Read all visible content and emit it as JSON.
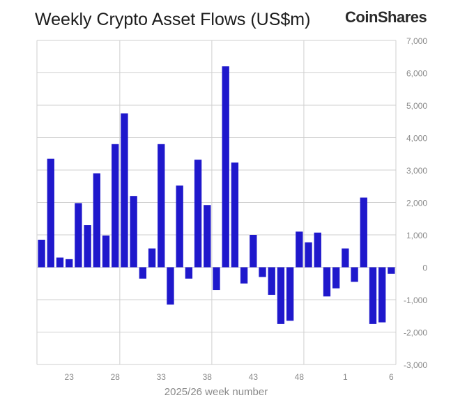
{
  "brand": {
    "logo_text": "CoinShares"
  },
  "chart_data": {
    "type": "bar",
    "title": "Weekly Crypto Asset Flows (US$m)",
    "xlabel": "2025/26 week number",
    "ylabel": "",
    "ylim": [
      -3000,
      7000
    ],
    "yticks": [
      7000,
      6000,
      5000,
      4000,
      3000,
      2000,
      1000,
      0,
      -1000,
      -2000,
      -3000
    ],
    "ytick_labels": [
      "7,000",
      "6,000",
      "5,000",
      "4,000",
      "3,000",
      "2,000",
      "1,000",
      "0",
      "-1,000",
      "-2,000",
      "-3,000"
    ],
    "xtick_labels": [
      "23",
      "28",
      "33",
      "38",
      "43",
      "48",
      "1",
      "6"
    ],
    "xtick_category_index": [
      3,
      8,
      13,
      18,
      23,
      28,
      33,
      38
    ],
    "vertical_gridline_category_positions": [
      9,
      19,
      29
    ],
    "grid": true,
    "bar_color": "#1f18cc",
    "categories": [
      "20",
      "21",
      "22",
      "23",
      "24",
      "25",
      "26",
      "27",
      "28",
      "29",
      "30",
      "31",
      "32",
      "33",
      "34",
      "35",
      "36",
      "37",
      "38",
      "39",
      "40",
      "41",
      "42",
      "43",
      "44",
      "45",
      "46",
      "47",
      "48",
      "49",
      "50",
      "51",
      "52",
      "1",
      "2",
      "3",
      "4",
      "5",
      "6"
    ],
    "values": [
      850,
      3350,
      300,
      250,
      1980,
      1300,
      2900,
      980,
      3800,
      4750,
      2200,
      -350,
      580,
      3800,
      -1150,
      2520,
      -350,
      3320,
      1920,
      -700,
      6200,
      3230,
      -500,
      1000,
      -300,
      -850,
      -1750,
      -1650,
      1100,
      770,
      1070,
      -900,
      -650,
      580,
      -450,
      2150,
      -1750,
      -1700,
      -200
    ]
  }
}
